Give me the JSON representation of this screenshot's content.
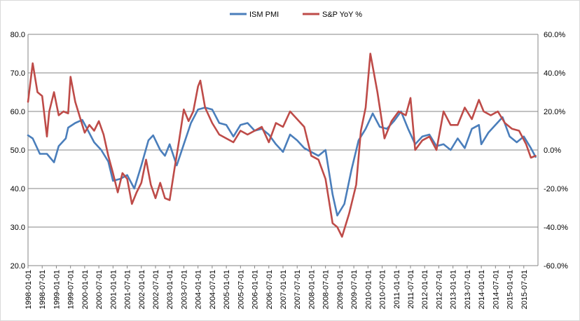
{
  "chart_data": {
    "type": "line",
    "title": "",
    "xlabel": "",
    "ylabel_left": "",
    "ylabel_right": "",
    "legend_position": "top",
    "grid": "horizontal",
    "colors": {
      "ISM PMI": "#4a7ebb",
      "S&P YoY %": "#be4b48"
    },
    "y_left": {
      "min": 20,
      "max": 80,
      "ticks": [
        "20.0",
        "30.0",
        "40.0",
        "50.0",
        "60.0",
        "70.0",
        "80.0"
      ]
    },
    "y_right": {
      "min": -60,
      "max": 60,
      "ticks": [
        "-60.0%",
        "-40.0%",
        "-20.0%",
        "0.0%",
        "20.0%",
        "40.0%",
        "60.0%"
      ]
    },
    "x_start": "1998-01",
    "x_end": "2015-12",
    "x_tick_labels": [
      "1998-01-01",
      "1998-07-01",
      "1999-01-01",
      "1999-07-01",
      "2000-01-01",
      "2000-07-01",
      "2001-01-01",
      "2001-07-01",
      "2002-01-01",
      "2002-07-01",
      "2003-01-01",
      "2003-07-01",
      "2004-01-01",
      "2004-07-01",
      "2005-01-01",
      "2005-07-01",
      "2006-01-01",
      "2006-07-01",
      "2007-01-01",
      "2007-07-01",
      "2008-01-01",
      "2008-07-01",
      "2009-01-01",
      "2009-07-01",
      "2010-01-01",
      "2010-07-01",
      "2011-01-01",
      "2011-07-01",
      "2012-01-01",
      "2012-07-01",
      "2013-01-01",
      "2013-07-01",
      "2014-01-01",
      "2014-07-01",
      "2015-01-01",
      "2015-07-01"
    ],
    "series": [
      {
        "name": "ISM PMI",
        "axis": "left",
        "points": [
          [
            "1998-01",
            53.8
          ],
          [
            "1998-03",
            53.0
          ],
          [
            "1998-06",
            49.0
          ],
          [
            "1998-09",
            49.0
          ],
          [
            "1998-12",
            46.8
          ],
          [
            "1999-02",
            51.0
          ],
          [
            "1999-05",
            53.0
          ],
          [
            "1999-06",
            55.8
          ],
          [
            "1999-09",
            57.0
          ],
          [
            "1999-12",
            57.8
          ],
          [
            "2000-02",
            55.5
          ],
          [
            "2000-05",
            52.0
          ],
          [
            "2000-08",
            50.0
          ],
          [
            "2000-11",
            47.0
          ],
          [
            "2001-01",
            42.0
          ],
          [
            "2001-04",
            42.5
          ],
          [
            "2001-07",
            43.5
          ],
          [
            "2001-10",
            40.0
          ],
          [
            "2002-01",
            46.0
          ],
          [
            "2002-04",
            52.5
          ],
          [
            "2002-06",
            53.8
          ],
          [
            "2002-09",
            50.0
          ],
          [
            "2002-11",
            48.5
          ],
          [
            "2003-01",
            51.5
          ],
          [
            "2003-04",
            46.0
          ],
          [
            "2003-07",
            51.5
          ],
          [
            "2003-10",
            57.0
          ],
          [
            "2004-01",
            60.5
          ],
          [
            "2004-04",
            61.0
          ],
          [
            "2004-07",
            60.5
          ],
          [
            "2004-10",
            57.0
          ],
          [
            "2005-01",
            56.5
          ],
          [
            "2005-04",
            53.5
          ],
          [
            "2005-07",
            56.5
          ],
          [
            "2005-10",
            57.0
          ],
          [
            "2006-01",
            55.0
          ],
          [
            "2006-04",
            55.5
          ],
          [
            "2006-07",
            54.0
          ],
          [
            "2006-10",
            51.5
          ],
          [
            "2007-01",
            49.5
          ],
          [
            "2007-04",
            54.0
          ],
          [
            "2007-07",
            52.5
          ],
          [
            "2007-10",
            50.5
          ],
          [
            "2008-01",
            49.5
          ],
          [
            "2008-04",
            48.5
          ],
          [
            "2008-07",
            50.0
          ],
          [
            "2008-10",
            38.5
          ],
          [
            "2008-12",
            33.0
          ],
          [
            "2009-03",
            36.0
          ],
          [
            "2009-06",
            44.8
          ],
          [
            "2009-09",
            52.5
          ],
          [
            "2009-12",
            55.5
          ],
          [
            "2010-03",
            59.5
          ],
          [
            "2010-06",
            56.0
          ],
          [
            "2010-09",
            55.5
          ],
          [
            "2010-12",
            57.5
          ],
          [
            "2011-03",
            60.0
          ],
          [
            "2011-06",
            55.5
          ],
          [
            "2011-09",
            51.5
          ],
          [
            "2011-12",
            53.5
          ],
          [
            "2012-03",
            54.0
          ],
          [
            "2012-06",
            51.0
          ],
          [
            "2012-09",
            51.5
          ],
          [
            "2012-12",
            50.0
          ],
          [
            "2013-03",
            53.0
          ],
          [
            "2013-06",
            50.5
          ],
          [
            "2013-09",
            55.5
          ],
          [
            "2013-12",
            56.5
          ],
          [
            "2014-01",
            51.5
          ],
          [
            "2014-04",
            54.5
          ],
          [
            "2014-07",
            56.5
          ],
          [
            "2014-10",
            58.5
          ],
          [
            "2015-01",
            53.5
          ],
          [
            "2015-04",
            52.0
          ],
          [
            "2015-07",
            53.5
          ],
          [
            "2015-10",
            50.5
          ],
          [
            "2015-12",
            48.2
          ]
        ]
      },
      {
        "name": "S&P YoY %",
        "axis": "right",
        "points": [
          [
            "1998-01",
            25.0
          ],
          [
            "1998-03",
            45.0
          ],
          [
            "1998-05",
            30.0
          ],
          [
            "1998-07",
            28.0
          ],
          [
            "1998-09",
            7.0
          ],
          [
            "1998-10",
            20.0
          ],
          [
            "1998-12",
            30.0
          ],
          [
            "1999-02",
            18.0
          ],
          [
            "1999-04",
            20.0
          ],
          [
            "1999-06",
            19.0
          ],
          [
            "1999-07",
            38.0
          ],
          [
            "1999-09",
            25.0
          ],
          [
            "1999-11",
            17.0
          ],
          [
            "2000-01",
            9.0
          ],
          [
            "2000-03",
            13.0
          ],
          [
            "2000-05",
            10.0
          ],
          [
            "2000-07",
            15.0
          ],
          [
            "2000-09",
            8.0
          ],
          [
            "2000-11",
            -3.0
          ],
          [
            "2001-01",
            -12.0
          ],
          [
            "2001-03",
            -22.0
          ],
          [
            "2001-05",
            -12.0
          ],
          [
            "2001-07",
            -15.0
          ],
          [
            "2001-09",
            -28.0
          ],
          [
            "2001-11",
            -22.0
          ],
          [
            "2002-01",
            -17.0
          ],
          [
            "2002-03",
            -5.0
          ],
          [
            "2002-05",
            -18.0
          ],
          [
            "2002-07",
            -25.0
          ],
          [
            "2002-09",
            -17.0
          ],
          [
            "2002-11",
            -25.0
          ],
          [
            "2003-01",
            -26.0
          ],
          [
            "2003-03",
            -10.0
          ],
          [
            "2003-05",
            5.0
          ],
          [
            "2003-07",
            21.0
          ],
          [
            "2003-09",
            15.0
          ],
          [
            "2003-11",
            20.0
          ],
          [
            "2004-01",
            33.0
          ],
          [
            "2004-02",
            36.0
          ],
          [
            "2004-04",
            22.0
          ],
          [
            "2004-07",
            14.0
          ],
          [
            "2004-10",
            8.0
          ],
          [
            "2005-01",
            6.0
          ],
          [
            "2005-04",
            4.0
          ],
          [
            "2005-07",
            10.0
          ],
          [
            "2005-10",
            8.0
          ],
          [
            "2006-01",
            10.0
          ],
          [
            "2006-04",
            12.0
          ],
          [
            "2006-07",
            4.0
          ],
          [
            "2006-10",
            14.0
          ],
          [
            "2007-01",
            12.0
          ],
          [
            "2007-04",
            20.0
          ],
          [
            "2007-07",
            16.0
          ],
          [
            "2007-10",
            12.0
          ],
          [
            "2008-01",
            -3.0
          ],
          [
            "2008-04",
            -5.0
          ],
          [
            "2008-07",
            -15.0
          ],
          [
            "2008-10",
            -38.0
          ],
          [
            "2008-12",
            -40.0
          ],
          [
            "2009-02",
            -45.0
          ],
          [
            "2009-05",
            -33.0
          ],
          [
            "2009-08",
            -18.0
          ],
          [
            "2009-10",
            10.0
          ],
          [
            "2009-12",
            22.0
          ],
          [
            "2010-02",
            50.0
          ],
          [
            "2010-05",
            30.0
          ],
          [
            "2010-08",
            6.0
          ],
          [
            "2010-11",
            15.0
          ],
          [
            "2011-02",
            20.0
          ],
          [
            "2011-05",
            18.0
          ],
          [
            "2011-07",
            27.0
          ],
          [
            "2011-09",
            0.0
          ],
          [
            "2011-12",
            5.0
          ],
          [
            "2012-03",
            7.0
          ],
          [
            "2012-06",
            0.0
          ],
          [
            "2012-09",
            20.0
          ],
          [
            "2012-12",
            13.0
          ],
          [
            "2013-03",
            13.0
          ],
          [
            "2013-06",
            22.0
          ],
          [
            "2013-09",
            16.0
          ],
          [
            "2013-12",
            26.0
          ],
          [
            "2014-02",
            20.0
          ],
          [
            "2014-05",
            18.0
          ],
          [
            "2014-08",
            20.0
          ],
          [
            "2014-11",
            14.0
          ],
          [
            "2015-02",
            11.0
          ],
          [
            "2015-05",
            10.0
          ],
          [
            "2015-08",
            3.0
          ],
          [
            "2015-10",
            -4.0
          ],
          [
            "2015-12",
            -3.0
          ]
        ]
      }
    ]
  }
}
